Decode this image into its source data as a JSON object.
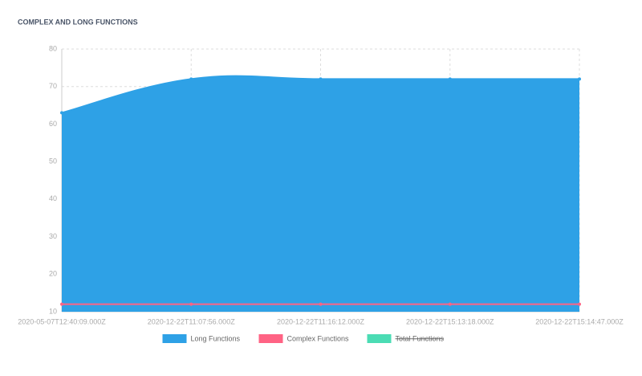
{
  "chart_data": {
    "type": "area",
    "title": "COMPLEX AND LONG FUNCTIONS",
    "categories": [
      "2020-05-07T12:40:09.000Z",
      "2020-12-22T11:07:56.000Z",
      "2020-12-22T11:16:12.000Z",
      "2020-12-22T15:13:18.000Z",
      "2020-12-22T15:14:47.000Z"
    ],
    "series": [
      {
        "name": "Long Functions",
        "color": "#2ea1e6",
        "fill": true,
        "values": [
          63,
          72,
          72,
          72,
          72
        ]
      },
      {
        "name": "Complex Functions",
        "color": "#ff6384",
        "fill": false,
        "values": [
          12,
          12,
          12,
          12,
          12
        ]
      },
      {
        "name": "Total Functions",
        "color": "#4bdcb4",
        "hidden": true,
        "values": [
          null,
          null,
          null,
          null,
          null
        ]
      }
    ],
    "ylim": [
      10,
      80
    ],
    "yticks": [
      10,
      20,
      30,
      40,
      50,
      60,
      70,
      80
    ],
    "grid": true,
    "legend": "bottom"
  }
}
